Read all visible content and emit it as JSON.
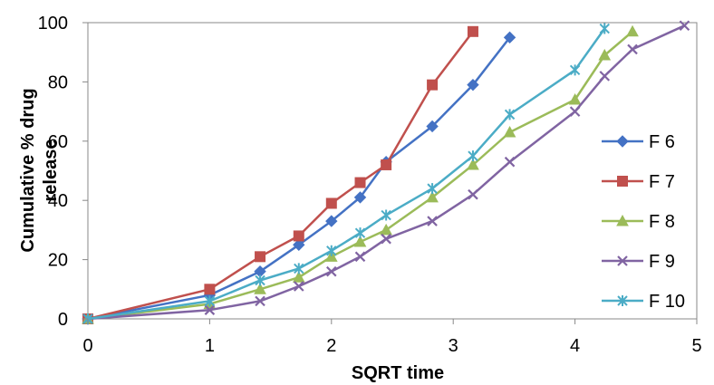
{
  "chart_data": {
    "type": "line",
    "title": "",
    "xlabel": "SQRT time",
    "ylabel_lines": [
      "Cumulative % drug",
      "release"
    ],
    "xlim": [
      0,
      5
    ],
    "ylim": [
      0,
      100
    ],
    "xticks": [
      "0",
      "1",
      "2",
      "3",
      "4",
      "5"
    ],
    "yticks": [
      "0",
      "20",
      "40",
      "60",
      "80",
      "100"
    ],
    "grid": false,
    "legend": "right",
    "series": [
      {
        "name": "F 6",
        "color": "#4472C4",
        "marker": "diamond",
        "x": [
          0,
          1,
          1.414,
          1.732,
          2,
          2.236,
          2.449,
          2.828,
          3.162,
          3.464
        ],
        "y": [
          0,
          8,
          16,
          25,
          33,
          41,
          53,
          65,
          79,
          95
        ]
      },
      {
        "name": "F 7",
        "color": "#C0504D",
        "marker": "square",
        "x": [
          0,
          1,
          1.414,
          1.732,
          2,
          2.236,
          2.449,
          2.828,
          3.162
        ],
        "y": [
          0,
          10,
          21,
          28,
          39,
          46,
          52,
          79,
          97
        ]
      },
      {
        "name": "F 8",
        "color": "#9BBB59",
        "marker": "triangle",
        "x": [
          0,
          1,
          1.414,
          1.732,
          2,
          2.236,
          2.449,
          2.828,
          3.162,
          3.464,
          4,
          4.243,
          4.472
        ],
        "y": [
          0,
          5,
          10,
          14,
          21,
          26,
          30,
          41,
          52,
          63,
          74,
          89,
          97
        ]
      },
      {
        "name": "F 9",
        "color": "#8064A2",
        "marker": "x",
        "x": [
          0,
          1,
          1.414,
          1.732,
          2,
          2.236,
          2.449,
          2.828,
          3.162,
          3.464,
          4,
          4.243,
          4.472,
          4.899
        ],
        "y": [
          0,
          3,
          6,
          11,
          16,
          21,
          27,
          33,
          42,
          53,
          70,
          82,
          91,
          99
        ]
      },
      {
        "name": "F 10",
        "color": "#4BACC6",
        "marker": "star",
        "x": [
          0,
          1,
          1.414,
          1.732,
          2,
          2.236,
          2.449,
          2.828,
          3.162,
          3.464,
          4,
          4.243
        ],
        "y": [
          0,
          6,
          13,
          17,
          23,
          29,
          35,
          44,
          55,
          69,
          84,
          98
        ]
      }
    ]
  }
}
